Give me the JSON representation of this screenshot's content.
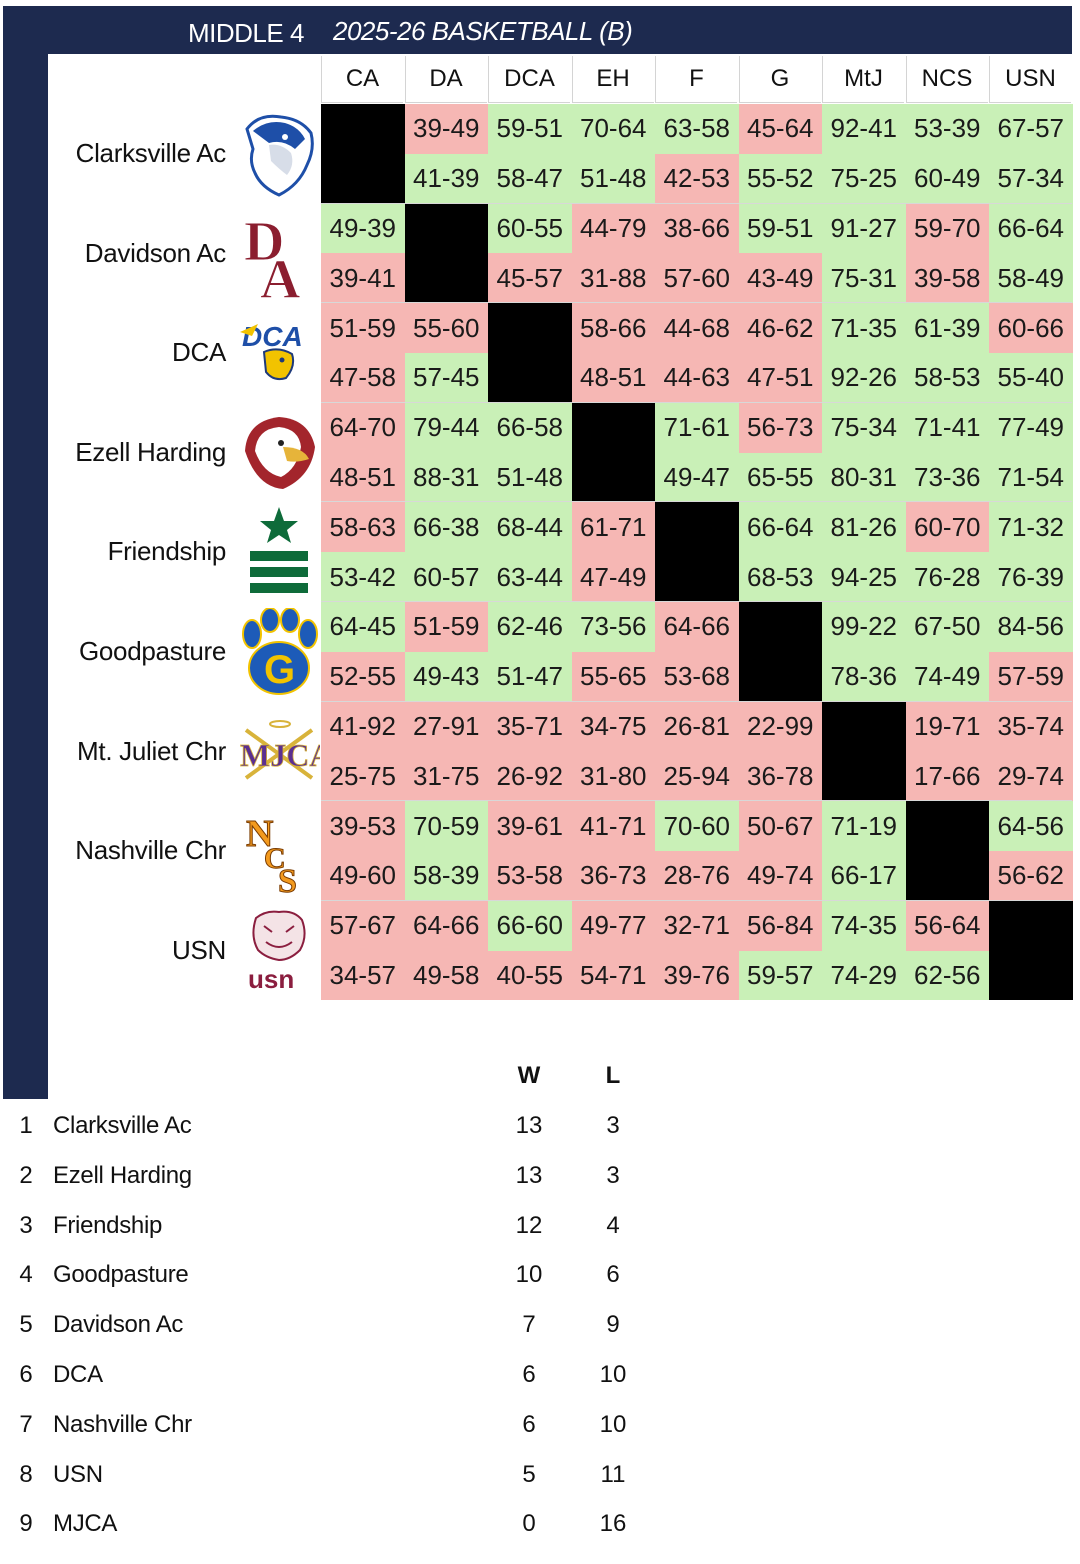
{
  "header": {
    "conference": "MIDDLE 4",
    "season": "2025-26 BASKETBALL (B)"
  },
  "columns": [
    "CA",
    "DA",
    "DCA",
    "EH",
    "F",
    "G",
    "MtJ",
    "NCS",
    "USN"
  ],
  "teams": [
    {
      "name": "Clarksville Ac",
      "logo": "cougar-logo-icon"
    },
    {
      "name": "Davidson Ac",
      "logo": "da-monogram-logo-icon"
    },
    {
      "name": "DCA",
      "logo": "dca-eagle-logo-icon"
    },
    {
      "name": "Ezell Harding",
      "logo": "eagle-head-logo-icon"
    },
    {
      "name": "Friendship",
      "logo": "star-stripes-logo-icon"
    },
    {
      "name": "Goodpasture",
      "logo": "paw-g-logo-icon"
    },
    {
      "name": "Mt. Juliet Chr",
      "logo": "mjca-logo-icon"
    },
    {
      "name": "Nashville Chr",
      "logo": "ncs-logo-icon"
    },
    {
      "name": "USN",
      "logo": "tiger-usn-logo-icon"
    }
  ],
  "results": [
    [
      null,
      [
        "39-49",
        "41-39"
      ],
      [
        "59-51",
        "58-47"
      ],
      [
        "70-64",
        "51-48"
      ],
      [
        "63-58",
        "42-53"
      ],
      [
        "45-64",
        "55-52"
      ],
      [
        "92-41",
        "75-25"
      ],
      [
        "53-39",
        "60-49"
      ],
      [
        "67-57",
        "57-34"
      ]
    ],
    [
      [
        "49-39",
        "39-41"
      ],
      null,
      [
        "60-55",
        "45-57"
      ],
      [
        "44-79",
        "31-88"
      ],
      [
        "38-66",
        "57-60"
      ],
      [
        "59-51",
        "43-49"
      ],
      [
        "91-27",
        "75-31"
      ],
      [
        "59-70",
        "39-58"
      ],
      [
        "66-64",
        "58-49"
      ]
    ],
    [
      [
        "51-59",
        "47-58"
      ],
      [
        "55-60",
        "57-45"
      ],
      null,
      [
        "58-66",
        "48-51"
      ],
      [
        "44-68",
        "44-63"
      ],
      [
        "46-62",
        "47-51"
      ],
      [
        "71-35",
        "92-26"
      ],
      [
        "61-39",
        "58-53"
      ],
      [
        "60-66",
        "55-40"
      ]
    ],
    [
      [
        "64-70",
        "48-51"
      ],
      [
        "79-44",
        "88-31"
      ],
      [
        "66-58",
        "51-48"
      ],
      null,
      [
        "71-61",
        "49-47"
      ],
      [
        "56-73",
        "65-55"
      ],
      [
        "75-34",
        "80-31"
      ],
      [
        "71-41",
        "73-36"
      ],
      [
        "77-49",
        "71-54"
      ]
    ],
    [
      [
        "58-63",
        "53-42"
      ],
      [
        "66-38",
        "60-57"
      ],
      [
        "68-44",
        "63-44"
      ],
      [
        "61-71",
        "47-49"
      ],
      null,
      [
        "66-64",
        "68-53"
      ],
      [
        "81-26",
        "94-25"
      ],
      [
        "60-70",
        "76-28"
      ],
      [
        "71-32",
        "76-39"
      ]
    ],
    [
      [
        "64-45",
        "52-55"
      ],
      [
        "51-59",
        "49-43"
      ],
      [
        "62-46",
        "51-47"
      ],
      [
        "73-56",
        "55-65"
      ],
      [
        "64-66",
        "53-68"
      ],
      null,
      [
        "99-22",
        "78-36"
      ],
      [
        "67-50",
        "74-49"
      ],
      [
        "84-56",
        "57-59"
      ]
    ],
    [
      [
        "41-92",
        "25-75"
      ],
      [
        "27-91",
        "31-75"
      ],
      [
        "35-71",
        "26-92"
      ],
      [
        "34-75",
        "31-80"
      ],
      [
        "26-81",
        "25-94"
      ],
      [
        "22-99",
        "36-78"
      ],
      null,
      [
        "19-71",
        "17-66"
      ],
      [
        "35-74",
        "29-74"
      ]
    ],
    [
      [
        "39-53",
        "49-60"
      ],
      [
        "70-59",
        "58-39"
      ],
      [
        "39-61",
        "53-58"
      ],
      [
        "41-71",
        "36-73"
      ],
      [
        "70-60",
        "28-76"
      ],
      [
        "50-67",
        "49-74"
      ],
      [
        "71-19",
        "66-17"
      ],
      null,
      [
        "64-56",
        "56-62"
      ]
    ],
    [
      [
        "57-67",
        "34-57"
      ],
      [
        "64-66",
        "49-58"
      ],
      [
        "66-60",
        "40-55"
      ],
      [
        "49-77",
        "54-71"
      ],
      [
        "32-71",
        "39-76"
      ],
      [
        "56-84",
        "59-57"
      ],
      [
        "74-35",
        "74-29"
      ],
      [
        "56-64",
        "62-56"
      ],
      null
    ]
  ],
  "colors": {
    "navy": "#1d2a4f",
    "win": "#c9f0b7",
    "loss": "#f6b7b4",
    "self": "#000000"
  },
  "standings": {
    "w_label": "W",
    "l_label": "L",
    "rows": [
      {
        "rank": "1",
        "team": "Clarksville Ac",
        "w": "13",
        "l": "3"
      },
      {
        "rank": "2",
        "team": "Ezell Harding",
        "w": "13",
        "l": "3"
      },
      {
        "rank": "3",
        "team": "Friendship",
        "w": "12",
        "l": "4"
      },
      {
        "rank": "4",
        "team": "Goodpasture",
        "w": "10",
        "l": "6"
      },
      {
        "rank": "5",
        "team": "Davidson Ac",
        "w": "7",
        "l": "9"
      },
      {
        "rank": "6",
        "team": "DCA",
        "w": "6",
        "l": "10"
      },
      {
        "rank": "7",
        "team": "Nashville Chr",
        "w": "6",
        "l": "10"
      },
      {
        "rank": "8",
        "team": "USN",
        "w": "5",
        "l": "11"
      },
      {
        "rank": "9",
        "team": "MJCA",
        "w": "0",
        "l": "16"
      }
    ]
  }
}
